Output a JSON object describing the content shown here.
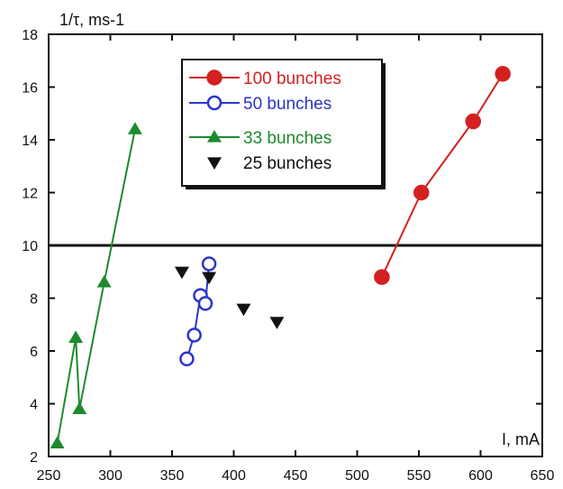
{
  "chart_data": {
    "type": "scatter",
    "title": "",
    "ylabel": "1/τ, ms-1",
    "xlabel": "I, mA",
    "xlim": [
      250,
      650
    ],
    "ylim": [
      2,
      18
    ],
    "xticks": [
      250,
      300,
      350,
      400,
      450,
      500,
      550,
      600,
      650
    ],
    "yticks": [
      2,
      4,
      6,
      8,
      10,
      12,
      14,
      16,
      18
    ],
    "reference_line_y": 10,
    "grid": false,
    "legend_position": "top-center",
    "series": [
      {
        "name": "100 bunches",
        "color": "#d42020",
        "marker": "filled-circle",
        "line": true,
        "x": [
          520,
          552,
          594,
          618
        ],
        "y": [
          8.8,
          12.0,
          14.7,
          16.5
        ]
      },
      {
        "name": "50 bunches",
        "color": "#2a35c8",
        "marker": "open-circle",
        "line": true,
        "x": [
          362,
          368,
          373,
          377,
          380
        ],
        "y": [
          5.7,
          6.6,
          8.1,
          7.8,
          9.3
        ]
      },
      {
        "name": "33 bunches",
        "color": "#1e8a2e",
        "marker": "filled-triangle-up",
        "line": true,
        "x": [
          257,
          272,
          275,
          295,
          320
        ],
        "y": [
          2.5,
          6.5,
          3.8,
          8.6,
          14.4
        ]
      },
      {
        "name": "25 bunches",
        "color": "#111111",
        "marker": "filled-triangle-down",
        "line": false,
        "x": [
          358,
          380,
          408,
          435
        ],
        "y": [
          9.0,
          8.8,
          7.6,
          7.1
        ]
      }
    ]
  }
}
